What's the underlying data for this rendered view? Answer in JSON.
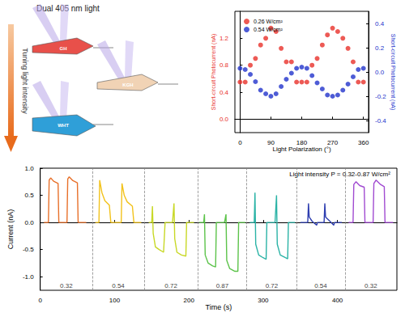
{
  "illustration": {
    "light_label": "Dual 405 nm light",
    "arrow_label": "Tuning light intensity",
    "devices": [
      "GH",
      "KGH",
      "WHT"
    ]
  },
  "chart_data": [
    {
      "type": "scatter",
      "x": [
        0,
        15,
        30,
        45,
        60,
        75,
        90,
        105,
        120,
        135,
        150,
        165,
        180,
        195,
        210,
        225,
        240,
        255,
        270,
        285,
        300,
        315,
        330,
        345,
        360
      ],
      "xlabel": "Light Polarization (°)",
      "ylabel": "Short-circuit Photocurrent (nA)",
      "y2label": "Short-circuit Photocurrent (nA)",
      "xlim": [
        -15,
        375
      ],
      "xticks": [
        0,
        90,
        180,
        270,
        360
      ],
      "ylim": [
        -0.2,
        1.6
      ],
      "yticks": [
        {
          "value": 0,
          "label": "0.0"
        },
        0.4,
        0.8,
        1.2
      ],
      "y2lim": [
        -0.5,
        0.5
      ],
      "y2ticks": [
        -0.4,
        -0.2,
        {
          "value": 0,
          "label": "0.0"
        },
        0.2,
        0.4
      ],
      "series": [
        {
          "name": "0.26 W/cm²",
          "color": "#e8312a",
          "marker": "circle",
          "values": [
            0.55,
            0.55,
            0.8,
            0.9,
            1.1,
            1.2,
            1.35,
            1.3,
            1.05,
            0.85,
            0.85,
            0.55,
            0.55,
            0.55,
            0.8,
            0.9,
            1.1,
            1.25,
            1.35,
            1.3,
            1.2,
            1.05,
            0.85,
            0.55,
            0.55
          ]
        },
        {
          "name": "0.54 W/cm²",
          "color": "#2233cc",
          "marker": "circle",
          "axis": "y2",
          "values": [
            0.03,
            0.02,
            -0.02,
            -0.08,
            -0.15,
            -0.18,
            -0.2,
            -0.18,
            -0.12,
            -0.06,
            -0.01,
            0.03,
            0.04,
            0.03,
            -0.03,
            -0.09,
            -0.14,
            -0.19,
            -0.2,
            -0.19,
            -0.15,
            -0.1,
            -0.04,
            0.02,
            0.03
          ]
        }
      ],
      "legend": "upper left",
      "grid": false
    },
    {
      "type": "line",
      "xlabel": "Time (s)",
      "ylabel": "Current (nA)",
      "annotation": "Light intensity P = 0.32-0.87 W/cm²",
      "xlim": [
        0,
        480
      ],
      "xticks": [
        0,
        100,
        200,
        300,
        400
      ],
      "ylim": [
        -1.25,
        1.0
      ],
      "yticks": [
        {
          "value": -1,
          "label": "-1.0"
        },
        -0.5,
        {
          "value": 0,
          "label": "0.0"
        },
        0.5,
        {
          "value": 1,
          "label": "1.0"
        }
      ],
      "series": [
        {
          "color": "#e8702a",
          "x": [
            5,
            11,
            12,
            14,
            18,
            24,
            25,
            36,
            37,
            39,
            44,
            50,
            51,
            62
          ],
          "values": [
            0,
            0,
            0.78,
            0.82,
            0.76,
            0.72,
            0,
            0,
            0.8,
            0.84,
            0.77,
            0.73,
            0,
            0
          ]
        },
        {
          "color": "#f2c21b",
          "x": [
            74,
            79,
            80,
            83,
            87,
            93,
            95,
            109,
            110,
            113,
            117,
            124,
            126,
            136
          ],
          "values": [
            0,
            0,
            0.78,
            0.55,
            0.4,
            0.32,
            0,
            0,
            0.72,
            0.5,
            0.38,
            0.3,
            0,
            0
          ]
        },
        {
          "color": "#c8d826",
          "x": [
            146,
            150,
            151,
            152,
            155,
            160,
            166,
            168,
            178,
            180,
            181,
            184,
            190,
            196,
            197,
            207
          ],
          "values": [
            0,
            0,
            0.3,
            -0.2,
            -0.45,
            -0.5,
            -0.55,
            0,
            0,
            0.35,
            -0.3,
            -0.55,
            -0.6,
            -0.62,
            0,
            0
          ]
        },
        {
          "color": "#5cc34a",
          "x": [
            214,
            220,
            221,
            222,
            226,
            232,
            236,
            237,
            248,
            250,
            251,
            255,
            262,
            266,
            267,
            276
          ],
          "values": [
            0,
            0,
            0.15,
            -0.6,
            -0.75,
            -0.8,
            -0.82,
            0,
            0,
            0.15,
            -0.7,
            -0.85,
            -0.9,
            -0.9,
            0,
            0
          ]
        },
        {
          "color": "#2bb3a6",
          "x": [
            282,
            288,
            289,
            290,
            294,
            300,
            304,
            305,
            316,
            318,
            319,
            323,
            330,
            333,
            334,
            343
          ],
          "values": [
            0,
            0,
            0.55,
            -0.4,
            -0.6,
            -0.65,
            -0.68,
            0,
            0,
            0.5,
            -0.4,
            -0.6,
            -0.65,
            -0.67,
            0,
            0
          ]
        },
        {
          "color": "#2f3fb0",
          "x": [
            350,
            360,
            361,
            362,
            366,
            372,
            373,
            382,
            383,
            384,
            390,
            395,
            396,
            406
          ],
          "values": [
            0,
            0,
            0.35,
            0.1,
            0.02,
            -0.05,
            0,
            0,
            0.35,
            0.1,
            0.02,
            -0.05,
            0,
            0
          ]
        },
        {
          "color": "#a14bd1",
          "x": [
            415,
            421,
            422,
            425,
            430,
            436,
            437,
            448,
            449,
            452,
            458,
            463,
            464,
            475
          ],
          "values": [
            0,
            0,
            0.7,
            0.75,
            0.68,
            0.65,
            0,
            0,
            0.72,
            0.78,
            0.7,
            0.66,
            0,
            0
          ]
        }
      ],
      "dividers": [
        70,
        140,
        212,
        278,
        345,
        410
      ],
      "segment_labels": [
        "0.32",
        "0.54",
        "0.72",
        "0.87",
        "0.72",
        "0.54",
        "0.32"
      ],
      "grid": false
    }
  ]
}
